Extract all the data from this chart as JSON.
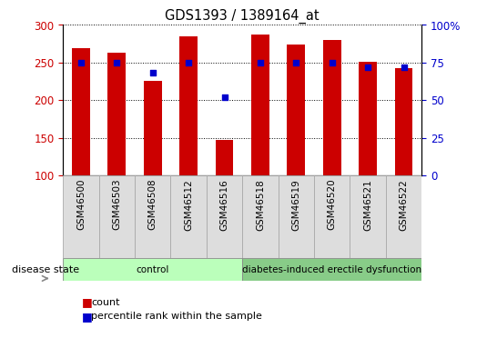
{
  "title": "GDS1393 / 1389164_at",
  "samples": [
    "GSM46500",
    "GSM46503",
    "GSM46508",
    "GSM46512",
    "GSM46516",
    "GSM46518",
    "GSM46519",
    "GSM46520",
    "GSM46521",
    "GSM46522"
  ],
  "counts": [
    269,
    263,
    225,
    285,
    147,
    287,
    274,
    280,
    251,
    242
  ],
  "percentile_ranks": [
    75,
    75,
    68,
    75,
    52,
    75,
    75,
    75,
    72,
    72
  ],
  "ylim_left": [
    100,
    300
  ],
  "ylim_right": [
    0,
    100
  ],
  "yticks_left": [
    100,
    150,
    200,
    250,
    300
  ],
  "yticks_right": [
    0,
    25,
    50,
    75,
    100
  ],
  "bar_color": "#cc0000",
  "dot_color": "#0000cc",
  "bar_width": 0.5,
  "groups": [
    {
      "label": "control",
      "start": 0,
      "end": 4,
      "color": "#bbffbb"
    },
    {
      "label": "diabetes-induced erectile dysfunction",
      "start": 5,
      "end": 9,
      "color": "#88cc88"
    }
  ],
  "disease_state_label": "disease state",
  "tick_label_color_left": "#cc0000",
  "tick_label_color_right": "#0000cc",
  "xtick_box_color": "#dddddd",
  "xtick_box_edge": "#aaaaaa"
}
